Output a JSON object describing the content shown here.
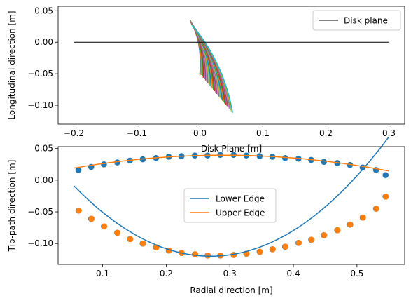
{
  "chart_data": [
    {
      "type": "line",
      "xlabel": "Disk Plane [m]",
      "ylabel": "Longitudinal direction [m]",
      "xlim": [
        -0.225,
        0.325
      ],
      "ylim": [
        -0.13,
        0.057
      ],
      "xticks": [
        -0.2,
        -0.1,
        0.0,
        0.1,
        0.2,
        0.3
      ],
      "xtick_labels": [
        "−0.2",
        "−0.1",
        "0.0",
        "0.1",
        "0.2",
        "0.3"
      ],
      "yticks": [
        0.05,
        0.0,
        -0.05,
        -0.1
      ],
      "ytick_labels": [
        "0.05",
        "0.00",
        "−0.05",
        "−0.10"
      ],
      "legend": {
        "placement": "top-right",
        "entries": [
          "Disk plane"
        ]
      },
      "series": [
        {
          "name": "Disk plane",
          "color": "#000000",
          "x": [
            -0.2,
            0.3
          ],
          "y": [
            0.0,
            0.0
          ]
        }
      ],
      "blade_sections": {
        "count": 30,
        "colors": [
          "#1f77b4",
          "#ff7f0e",
          "#2ca02c",
          "#d62728",
          "#9467bd",
          "#8c564b",
          "#e377c2",
          "#7f7f7f",
          "#bcbd22",
          "#17becf"
        ],
        "leading_tip": {
          "x": [
            -0.0155,
            -0.0125
          ],
          "y": [
            0.035,
            0.027
          ]
        },
        "trailing_tip": {
          "x": [
            0.0,
            0.052
          ],
          "y": [
            -0.05,
            -0.112
          ]
        }
      }
    },
    {
      "type": "line",
      "xlabel": "Radial direction [m]",
      "ylabel": "Tip-path direction [m]",
      "xlim": [
        0.03,
        0.575
      ],
      "ylim": [
        -0.133,
        0.053
      ],
      "xticks": [
        0.1,
        0.2,
        0.3,
        0.4,
        0.5
      ],
      "xtick_labels": [
        "0.1",
        "0.2",
        "0.3",
        "0.4",
        "0.5"
      ],
      "yticks": [
        0.05,
        0.0,
        -0.05,
        -0.1
      ],
      "ytick_labels": [
        "0.05",
        "0.00",
        "−0.05",
        "−0.10"
      ],
      "legend": {
        "placement": "center",
        "entries": [
          "Lower Edge",
          "Upper Edge"
        ]
      },
      "series": [
        {
          "name": "Lower Edge",
          "color": "#1f77b4",
          "fit_range": [
            0.055,
            0.55
          ],
          "vertex": [
            0.27,
            -0.12
          ],
          "coef": 2.4
        },
        {
          "name": "Upper Edge",
          "color": "#ff7f0e",
          "fit_range": [
            0.055,
            0.55
          ],
          "vertex": [
            0.29,
            0.0395
          ],
          "coef": -0.37
        }
      ],
      "points": {
        "x": [
          0.062,
          0.082,
          0.102,
          0.123,
          0.143,
          0.163,
          0.184,
          0.204,
          0.224,
          0.245,
          0.265,
          0.285,
          0.306,
          0.326,
          0.347,
          0.367,
          0.387,
          0.408,
          0.428,
          0.448,
          0.469,
          0.489,
          0.509,
          0.53,
          0.545
        ],
        "lower_y": [
          -0.048,
          -0.061,
          -0.073,
          -0.083,
          -0.093,
          -0.1,
          -0.106,
          -0.111,
          -0.115,
          -0.117,
          -0.119,
          -0.119,
          -0.118,
          -0.116,
          -0.113,
          -0.109,
          -0.105,
          -0.099,
          -0.094,
          -0.087,
          -0.079,
          -0.07,
          -0.059,
          -0.045,
          -0.026
        ],
        "upper_y": [
          0.016,
          0.021,
          0.025,
          0.028,
          0.031,
          0.033,
          0.035,
          0.037,
          0.038,
          0.039,
          0.039,
          0.04,
          0.04,
          0.039,
          0.038,
          0.037,
          0.035,
          0.034,
          0.032,
          0.029,
          0.027,
          0.024,
          0.02,
          0.016,
          0.008
        ]
      }
    }
  ]
}
